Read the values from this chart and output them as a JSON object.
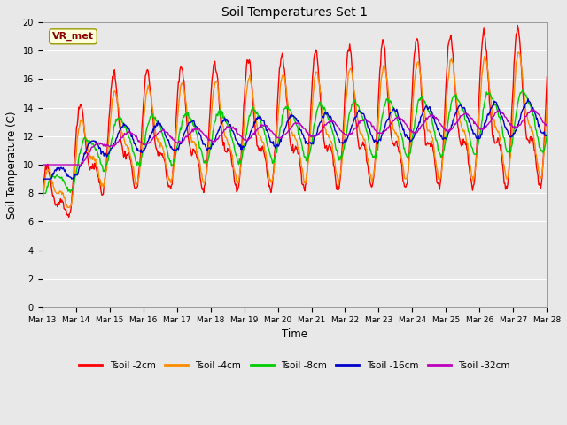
{
  "title": "Soil Temperatures Set 1",
  "xlabel": "Time",
  "ylabel": "Soil Temperature (C)",
  "ylim": [
    0,
    20
  ],
  "yticks": [
    0,
    2,
    4,
    6,
    8,
    10,
    12,
    14,
    16,
    18,
    20
  ],
  "xtick_labels": [
    "Mar 13",
    "Mar 14",
    "Mar 15",
    "Mar 16",
    "Mar 17",
    "Mar 18",
    "Mar 19",
    "Mar 20",
    "Mar 21",
    "Mar 22",
    "Mar 23",
    "Mar 24",
    "Mar 25",
    "Mar 26",
    "Mar 27",
    "Mar 28"
  ],
  "annotation_text": "VR_met",
  "annotation_color": "#8B0000",
  "annotation_bg": "#FFFFDD",
  "bg_color": "#E8E8E8",
  "colors": {
    "Tsoil -2cm": "#FF0000",
    "Tsoil -4cm": "#FF8C00",
    "Tsoil -8cm": "#00CC00",
    "Tsoil -16cm": "#0000CC",
    "Tsoil -32cm": "#BB00BB"
  },
  "linewidth": 1.0
}
